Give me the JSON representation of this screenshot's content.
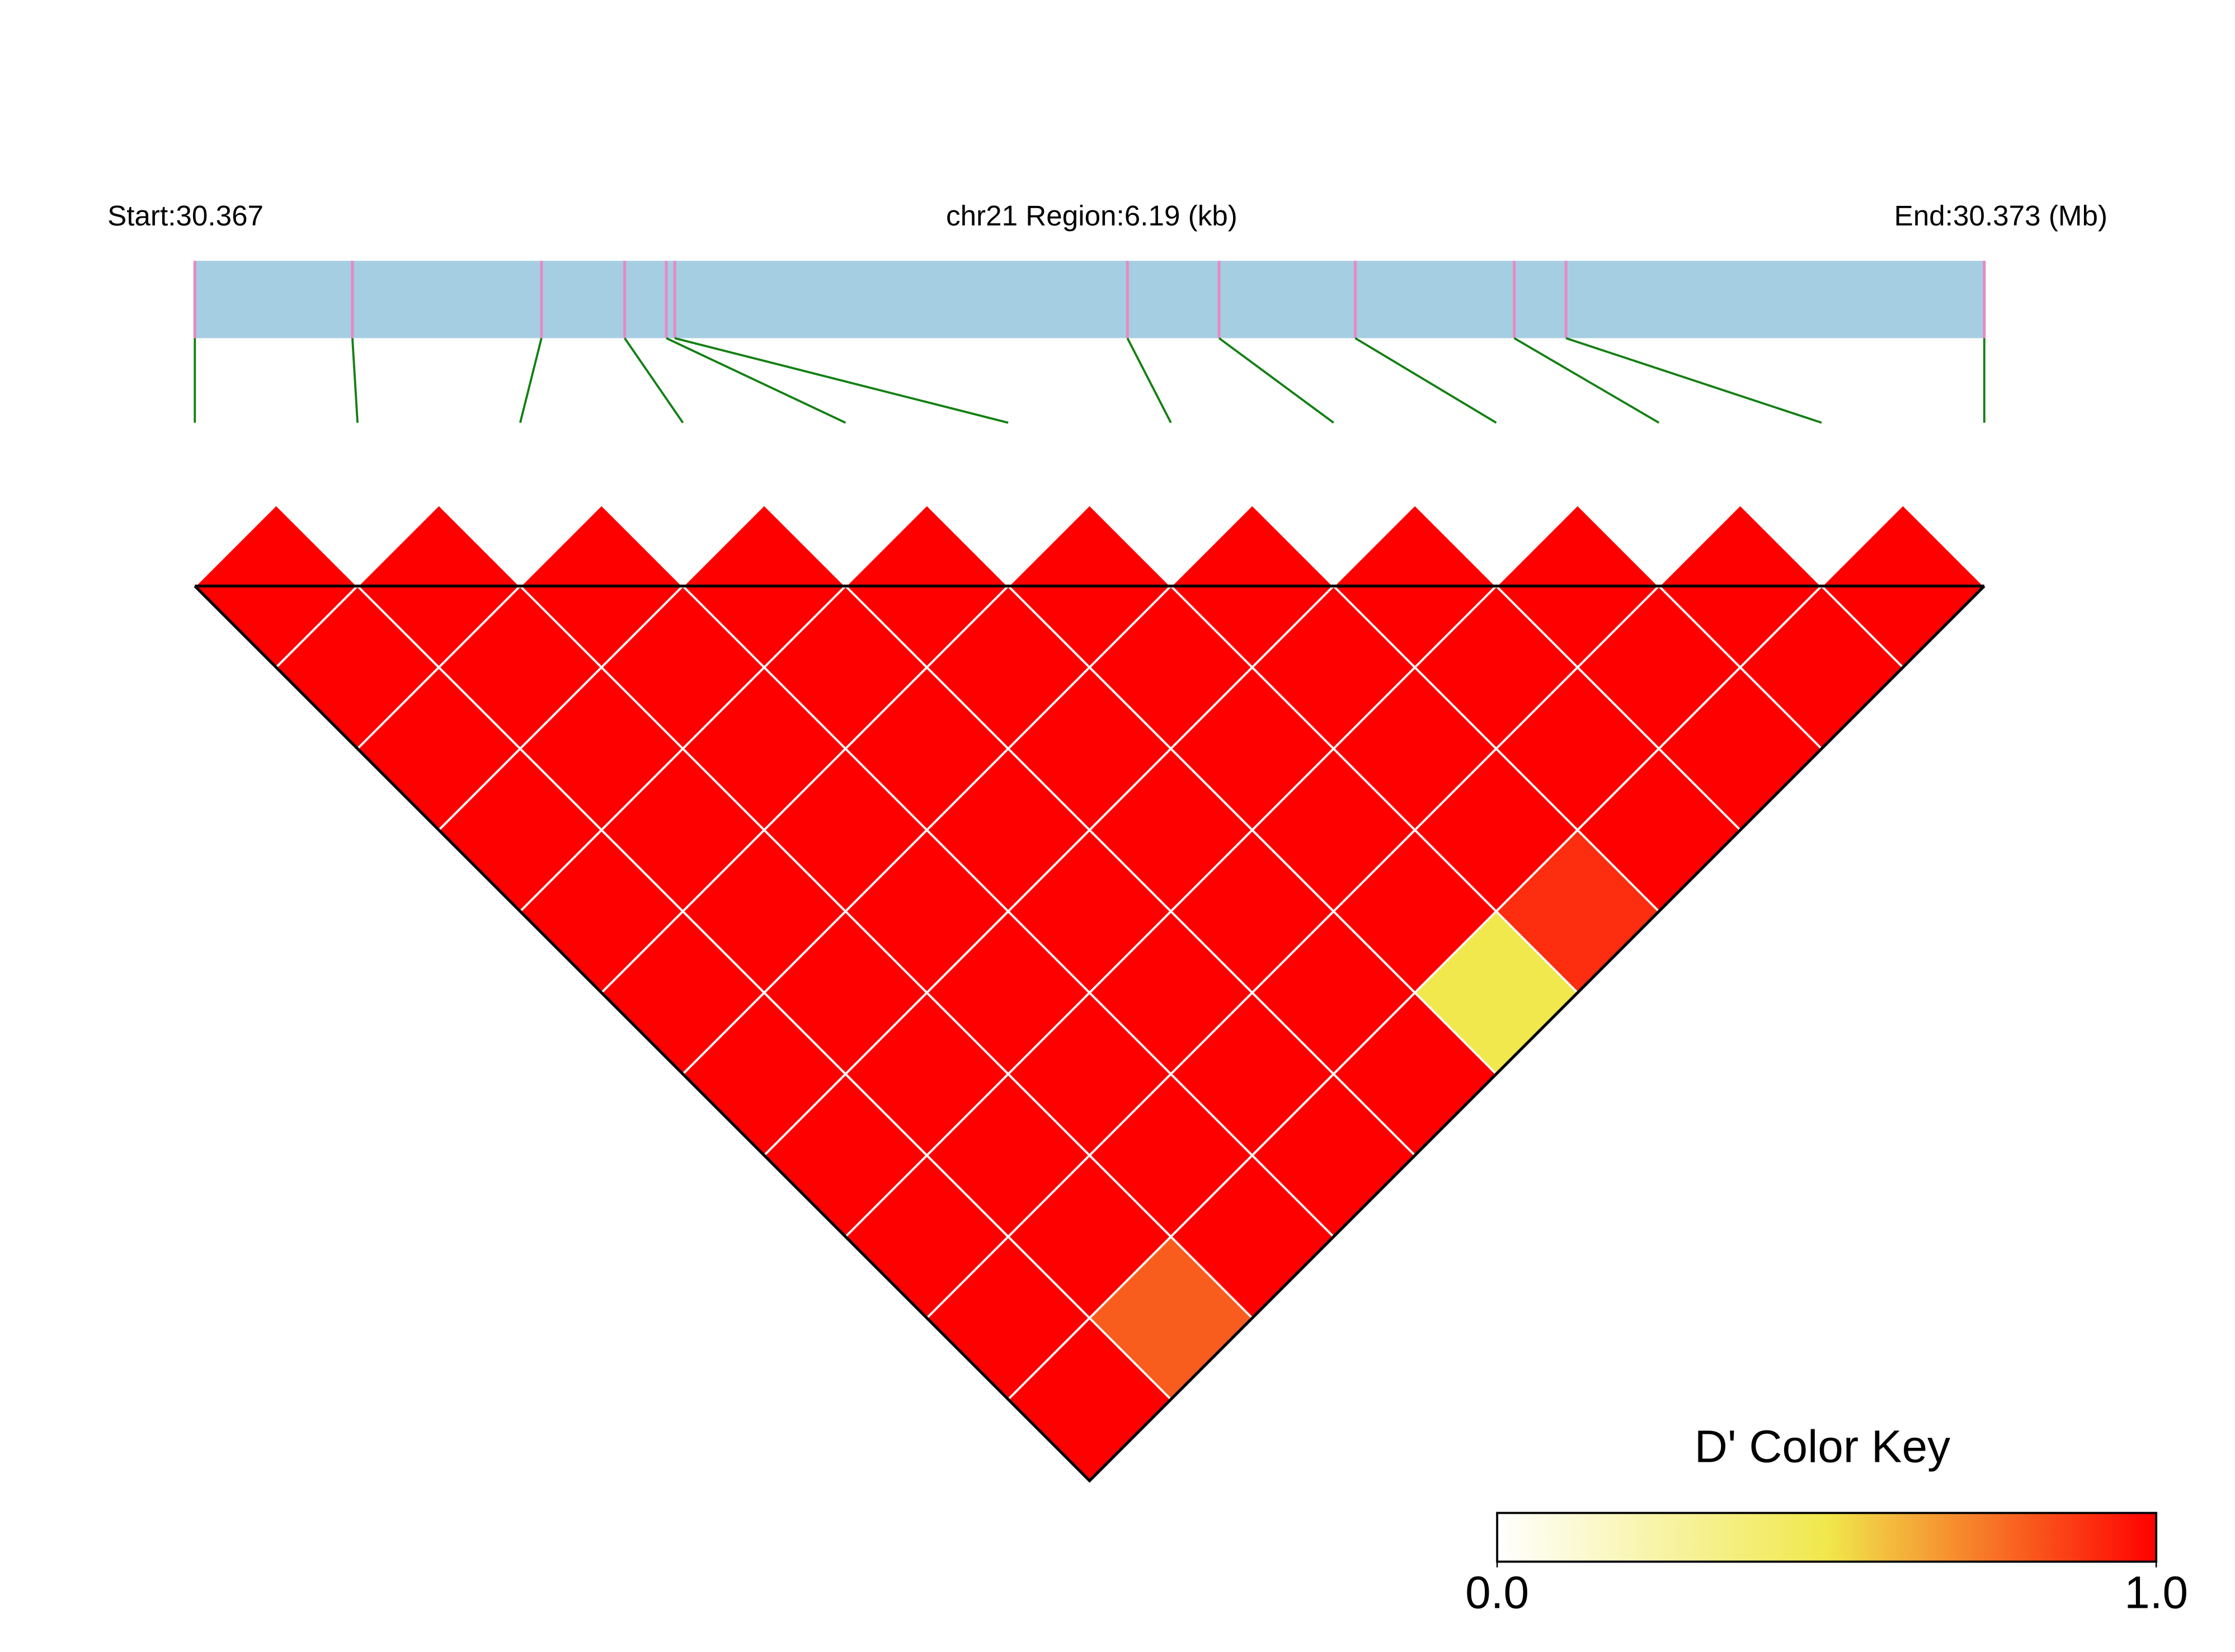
{
  "chart_data": {
    "type": "ld-heatmap",
    "start_label": "Start:30.367",
    "region_label": "chr21 Region:6.19 (kb)",
    "end_label": "End:30.373 (Mb)",
    "xlim": [
      0,
      6.19
    ],
    "snp_offsets_kb": [
      0,
      0.545,
      1.199,
      1.487,
      1.631,
      1.66,
      3.226,
      3.543,
      4.014,
      4.564,
      4.743,
      6.19
    ],
    "dprime": [
      [
        1,
        1,
        1,
        1,
        1,
        1,
        1,
        1,
        1,
        1,
        1
      ],
      [
        1,
        1,
        1,
        1,
        1,
        1,
        1,
        1,
        1,
        0.8
      ],
      [
        1,
        1,
        1,
        1,
        1,
        1,
        1,
        1,
        1
      ],
      [
        1,
        1,
        1,
        1,
        1,
        1,
        1,
        1
      ],
      [
        1,
        1,
        1,
        1,
        1,
        1,
        1
      ],
      [
        1,
        1,
        1,
        1,
        1,
        0.5
      ],
      [
        1,
        1,
        1,
        1,
        0.9
      ],
      [
        1,
        1,
        1,
        1
      ],
      [
        1,
        1,
        1
      ],
      [
        1,
        1
      ],
      [
        1
      ]
    ],
    "legend_title": "D' Color Key",
    "colorscale": [
      [
        0,
        "#ffffff"
      ],
      [
        0.5,
        "#f0e84c"
      ],
      [
        1,
        "#ff0000"
      ]
    ],
    "legend_ticks": [
      {
        "value": 0,
        "label": "0.0"
      },
      {
        "value": 1,
        "label": "1.0"
      }
    ],
    "bar_color": "#a6cee3",
    "snp_line_color": "#e68ac3",
    "link_color": "#138013"
  }
}
